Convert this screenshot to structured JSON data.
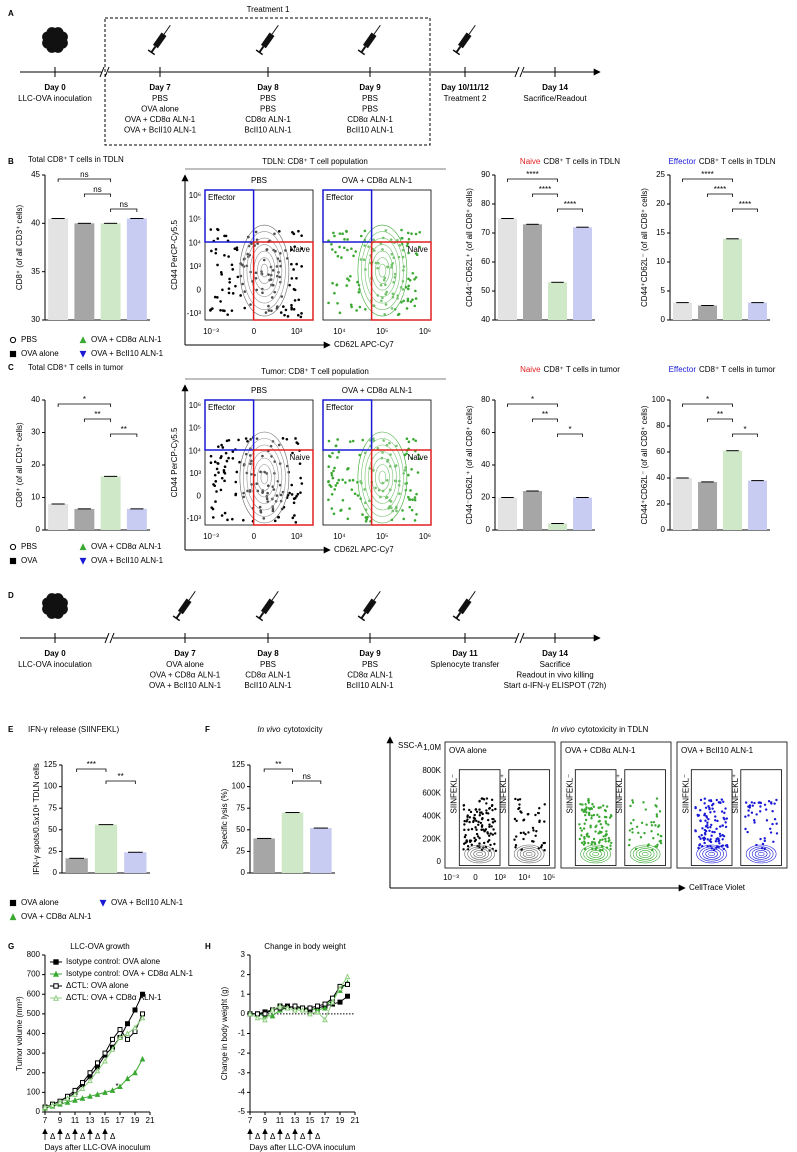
{
  "panel_labels": [
    "A",
    "B",
    "C",
    "D",
    "E",
    "F",
    "G",
    "H"
  ],
  "timelines": [
    {
      "treatment_box": "Treatment 1",
      "events": [
        {
          "day": "Day 0",
          "lines": [
            "LLC-OVA inoculation"
          ]
        },
        {
          "day": "Day 7",
          "lines": [
            "PBS",
            "OVA alone",
            "OVA + CD8α ALN-1",
            "OVA + BcII10 ALN-1"
          ]
        },
        {
          "day": "Day 8",
          "lines": [
            "PBS",
            "PBS",
            "CD8α ALN-1",
            "BcII10 ALN-1"
          ]
        },
        {
          "day": "Day 9",
          "lines": [
            "PBS",
            "PBS",
            "CD8α ALN-1",
            "BcII10 ALN-1"
          ]
        },
        {
          "day": "Day 10/11/12",
          "lines": [
            "Treatment 2"
          ]
        },
        {
          "day": "Day 14",
          "lines": [
            "Sacrifice/Readout"
          ]
        }
      ]
    },
    {
      "events": [
        {
          "day": "Day 0",
          "lines": [
            "LLC-OVA inoculation"
          ]
        },
        {
          "day": "Day 7",
          "lines": [
            "OVA alone",
            "OVA + CD8α ALN-1",
            "OVA + BcII10 ALN-1"
          ]
        },
        {
          "day": "Day 8",
          "lines": [
            "PBS",
            "CD8α ALN-1",
            "BcII10 ALN-1"
          ]
        },
        {
          "day": "Day 9",
          "lines": [
            "PBS",
            "CD8α ALN-1",
            "BcII10 ALN-1"
          ]
        },
        {
          "day": "Day 11",
          "lines": [
            "Splenocyte transfer"
          ]
        },
        {
          "day": "Day 14",
          "lines": [
            "Sacrifice",
            "Readout in vivo killing",
            "Start α-IFN-γ ELISPOT (72h)"
          ]
        }
      ]
    }
  ],
  "flow_plots": [
    {
      "title": "TDLN: CD8⁺ T cell population",
      "samples": [
        {
          "name": "PBS",
          "color": "#000000"
        },
        {
          "name": "OVA + CD8α ALN-1",
          "color": "#3aa832"
        }
      ],
      "gates": [
        "Effector",
        "Naive"
      ],
      "y_label": "CD44 PerCP-Cy5.5",
      "x_label": "CD62L APC-Cy7",
      "y_ticks": [
        "10⁶",
        "10⁵",
        "10⁴",
        "10³",
        "0",
        "-10³"
      ],
      "x_ticks": [
        "10⁻³",
        "0",
        "10³",
        "10⁴",
        "10⁵",
        "10⁶"
      ]
    },
    {
      "title": "Tumor: CD8⁺ T cell population",
      "samples": [
        {
          "name": "PBS",
          "color": "#000000"
        },
        {
          "name": "OVA + CD8α ALN-1",
          "color": "#3aa832"
        }
      ],
      "gates": [
        "Effector",
        "Naive"
      ],
      "y_label": "CD44 PerCP-Cy5.5",
      "x_label": "CD62L APC-Cy7",
      "y_ticks": [
        "10⁶",
        "10⁵",
        "10⁴",
        "10³",
        "0",
        "-10³"
      ],
      "x_ticks": [
        "10⁻³",
        "0",
        "10³",
        "10⁴",
        "10⁵",
        "10⁶"
      ]
    },
    {
      "title_prefix": "In vivo",
      "title": "cytotoxicity in TDLN",
      "samples": [
        {
          "name": "OVA alone",
          "color": "#000000"
        },
        {
          "name": "OVA + CD8α ALN-1",
          "color": "#3aa832"
        },
        {
          "name": "OVA + BcII10 ALN-1",
          "color": "#1a1ad6"
        }
      ],
      "gates": [
        "SIINFEKL⁻",
        "SIINFEKL⁺"
      ],
      "y_label": "SSC-A",
      "x_label": "CellTrace Violet",
      "y_ticks": [
        "1,0M",
        "800K",
        "600K",
        "400K",
        "200K",
        "0"
      ],
      "x_ticks": [
        "10⁻³",
        "0",
        "10³",
        "10⁴",
        "10⁵"
      ]
    }
  ],
  "chart_data": [
    {
      "type": "bar",
      "title": "Total CD8⁺ T cells in TDLN",
      "y_label": "CD8⁺ (of all CD3⁺ cells)",
      "ylim": [
        30,
        45
      ],
      "yticks": [
        30,
        35,
        40,
        45
      ],
      "series": [
        {
          "name": "PBS",
          "color": "#e3e3e3",
          "marker": "circle-open",
          "marker_color": "#000000",
          "values": [
            40.5
          ]
        },
        {
          "name": "OVA alone",
          "color": "#a6a6a6",
          "marker": "square",
          "marker_color": "#000000",
          "values": [
            40
          ]
        },
        {
          "name": "OVA + CD8α ALN-1",
          "color": "#cfe8c8",
          "marker": "triangle",
          "marker_color": "#3aa832",
          "values": [
            40
          ]
        },
        {
          "name": "OVA + BcII10 ALN-1",
          "color": "#c9ccf2",
          "marker": "triangle-down",
          "marker_color": "#1a1ad6",
          "values": [
            40.5
          ]
        }
      ],
      "annotations": [
        "ns",
        "ns",
        "ns"
      ]
    },
    {
      "type": "bar",
      "title_prefix": "Naive",
      "title_prefix_color": "#e02020",
      "title": "CD8⁺ T cells in TDLN",
      "y_label": "CD44⁻CD62L⁺ (of all CD8⁺ cells)",
      "ylim": [
        40,
        90
      ],
      "yticks": [
        40,
        50,
        60,
        70,
        80,
        90
      ],
      "values": [
        75,
        73,
        53,
        72
      ],
      "colors": [
        "#e3e3e3",
        "#a6a6a6",
        "#cfe8c8",
        "#c9ccf2"
      ],
      "annotations": [
        "****",
        "****",
        "****"
      ]
    },
    {
      "type": "bar",
      "title_prefix": "Effector",
      "title_prefix_color": "#1a1ad6",
      "title": "CD8⁺ T cells in TDLN",
      "y_label": "CD44⁺CD62L⁻ (of all CD8⁺ cells)",
      "ylim": [
        0,
        25
      ],
      "yticks": [
        0,
        5,
        10,
        15,
        20,
        25
      ],
      "values": [
        3,
        2.5,
        14,
        3
      ],
      "colors": [
        "#e3e3e3",
        "#a6a6a6",
        "#cfe8c8",
        "#c9ccf2"
      ],
      "annotations": [
        "****",
        "****",
        "****"
      ]
    },
    {
      "type": "bar",
      "title": "Total CD8⁺ T cells in tumor",
      "y_label": "CD8⁺ (of all CD3⁺ cells)",
      "ylim": [
        0,
        40
      ],
      "yticks": [
        0,
        10,
        20,
        30,
        40
      ],
      "series": [
        {
          "name": "PBS",
          "color": "#e3e3e3",
          "marker": "circle-open",
          "marker_color": "#000000",
          "values": [
            8
          ]
        },
        {
          "name": "OVA",
          "color": "#a6a6a6",
          "marker": "square",
          "marker_color": "#000000",
          "values": [
            6.5
          ]
        },
        {
          "name": "OVA + CD8α ALN-1",
          "color": "#cfe8c8",
          "marker": "triangle",
          "marker_color": "#3aa832",
          "values": [
            16.5
          ]
        },
        {
          "name": "OVA + BcII10 ALN-1",
          "color": "#c9ccf2",
          "marker": "triangle-down",
          "marker_color": "#1a1ad6",
          "values": [
            6.5
          ]
        }
      ],
      "annotations": [
        "*",
        "**",
        "**"
      ]
    },
    {
      "type": "bar",
      "title_prefix": "Naive",
      "title_prefix_color": "#e02020",
      "title": "CD8⁺ T cells in tumor",
      "y_label": "CD44⁻CD62L⁺ (of all CD8⁺ cells)",
      "ylim": [
        0,
        80
      ],
      "yticks": [
        0,
        20,
        40,
        60,
        80
      ],
      "values": [
        20,
        24,
        4,
        20
      ],
      "colors": [
        "#e3e3e3",
        "#a6a6a6",
        "#cfe8c8",
        "#c9ccf2"
      ],
      "annotations": [
        "*",
        "**",
        "*"
      ]
    },
    {
      "type": "bar",
      "title_prefix": "Effector",
      "title_prefix_color": "#1a1ad6",
      "title": "CD8⁺ T cells in tumor",
      "y_label": "CD44⁺CD62L⁻ (of all CD8⁺ cells)",
      "ylim": [
        0,
        100
      ],
      "yticks": [
        0,
        20,
        40,
        60,
        80,
        100
      ],
      "values": [
        40,
        37,
        61,
        38
      ],
      "colors": [
        "#e3e3e3",
        "#a6a6a6",
        "#cfe8c8",
        "#c9ccf2"
      ],
      "annotations": [
        "*",
        "**",
        "*"
      ]
    },
    {
      "type": "bar",
      "title": "IFN-γ release (SIINFEKL)",
      "y_label": "IFN-γ spots/0.5x10⁶ TDLN cells",
      "ylim": [
        0,
        125
      ],
      "yticks": [
        0,
        25,
        50,
        75,
        100,
        125
      ],
      "series": [
        {
          "name": "OVA alone",
          "color": "#a6a6a6",
          "marker": "square",
          "marker_color": "#000000",
          "values": [
            17
          ]
        },
        {
          "name": "OVA + CD8α ALN-1",
          "color": "#cfe8c8",
          "marker": "triangle",
          "marker_color": "#3aa832",
          "values": [
            56
          ]
        },
        {
          "name": "OVA + BcII10 ALN-1",
          "color": "#c9ccf2",
          "marker": "triangle-down",
          "marker_color": "#1a1ad6",
          "values": [
            24
          ]
        }
      ],
      "annotations": [
        "***",
        "**"
      ]
    },
    {
      "type": "bar",
      "title_prefix": "In vivo",
      "title_prefix_style": "italic",
      "title": "cytotoxicity",
      "y_label": "Specific lysis (%)",
      "ylim": [
        0,
        125
      ],
      "yticks": [
        0,
        25,
        50,
        75,
        100,
        125
      ],
      "values": [
        40,
        70,
        52
      ],
      "colors": [
        "#a6a6a6",
        "#cfe8c8",
        "#c9ccf2"
      ],
      "annotations": [
        "**",
        "ns"
      ]
    },
    {
      "type": "line",
      "title": "LLC-OVA growth",
      "x_label": "Days after LLC-OVA inoculum",
      "y_label": "Tumor volume (mm³)",
      "xlim": [
        7,
        21
      ],
      "xticks": [
        7,
        9,
        11,
        13,
        15,
        17,
        19,
        21
      ],
      "ylim": [
        0,
        800
      ],
      "yticks": [
        0,
        100,
        200,
        300,
        400,
        500,
        600,
        700,
        800
      ],
      "x": [
        7,
        8,
        9,
        10,
        11,
        12,
        13,
        14,
        15,
        16,
        17,
        18,
        19,
        20
      ],
      "series": [
        {
          "name": "Isotype control: OVA alone",
          "color": "#000000",
          "marker": "square",
          "values": [
            25,
            35,
            50,
            70,
            100,
            140,
            180,
            230,
            290,
            330,
            380,
            450,
            520,
            600
          ]
        },
        {
          "name": "Isotype control: OVA + CD8α ALN-1",
          "color": "#3aa832",
          "marker": "triangle",
          "values": [
            20,
            30,
            40,
            50,
            60,
            70,
            80,
            90,
            100,
            110,
            130,
            170,
            200,
            270
          ]
        },
        {
          "name": "ΔCTL: OVA alone",
          "color": "#000000",
          "marker": "square-open",
          "values": [
            25,
            40,
            55,
            80,
            110,
            150,
            200,
            250,
            300,
            370,
            420,
            370,
            410,
            500
          ]
        },
        {
          "name": "ΔCTL: OVA + CD8α ALN-1",
          "color": "#8cce7c",
          "marker": "triangle-open",
          "values": [
            25,
            35,
            50,
            70,
            90,
            120,
            160,
            210,
            260,
            320,
            380,
            400,
            430,
            480
          ]
        }
      ],
      "annotations": [
        "*"
      ],
      "arrow_days": [
        7,
        9,
        11,
        13,
        15
      ],
      "arrow_label": "Δ"
    },
    {
      "type": "line",
      "title": "Change in body weight",
      "x_label": "Days after LLC-OVA inoculum",
      "y_label": "Change in body weight (g)",
      "xlim": [
        7,
        21
      ],
      "xticks": [
        7,
        9,
        11,
        13,
        15,
        17,
        19,
        21
      ],
      "ylim": [
        -5,
        3
      ],
      "yticks": [
        -5,
        -4,
        -3,
        -2,
        -1,
        0,
        1,
        2,
        3
      ],
      "zero_line": true,
      "x": [
        7,
        8,
        9,
        10,
        11,
        12,
        13,
        14,
        15,
        16,
        17,
        18,
        19,
        20
      ],
      "series": [
        {
          "color": "#000000",
          "marker": "square",
          "values": [
            0,
            0,
            0.1,
            0.2,
            0.4,
            0.4,
            0.3,
            0.3,
            0.2,
            0.3,
            0.4,
            0.5,
            0.6,
            0.9
          ]
        },
        {
          "color": "#3aa832",
          "marker": "triangle",
          "values": [
            0,
            0,
            -0.1,
            -0.1,
            0.2,
            0.3,
            0.4,
            0.2,
            0.3,
            0.2,
            0.3,
            0.8,
            1.2,
            1.6
          ]
        },
        {
          "color": "#000000",
          "marker": "square-open",
          "values": [
            0,
            0,
            0,
            0.2,
            0.3,
            0.3,
            0.4,
            0.3,
            0.3,
            0.4,
            0.5,
            0.8,
            1.4,
            1.5
          ]
        },
        {
          "color": "#8cce7c",
          "marker": "triangle-open",
          "values": [
            0,
            -0.2,
            -0.3,
            0.2,
            0.4,
            0.3,
            0.2,
            0.2,
            0,
            0.1,
            -0.3,
            0.6,
            1.3,
            1.9
          ]
        }
      ],
      "arrow_days": [
        7,
        9,
        11,
        13,
        15
      ],
      "arrow_label": "Δ"
    }
  ]
}
